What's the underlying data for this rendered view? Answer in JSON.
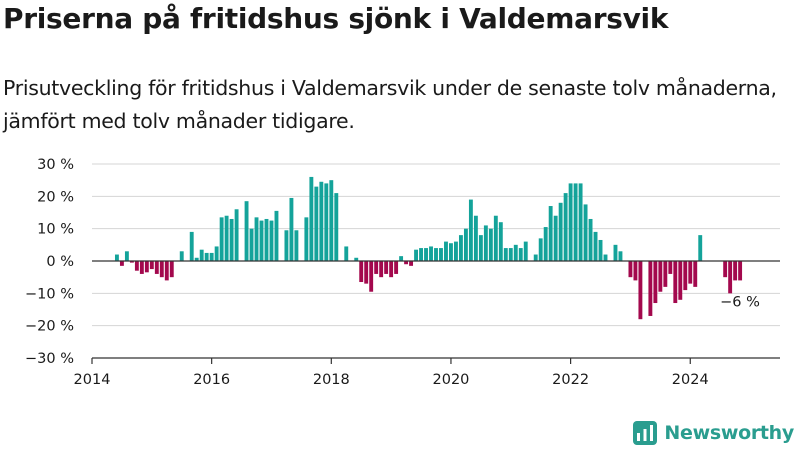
{
  "header": {
    "title": "Priserna på fritidshus sjönk i Valdemarsvik",
    "subtitle": "Prisutveckling för fritidshus i Valdemarsvik under de senaste tolv månaderna, jämfört med tolv månader tidigare."
  },
  "branding": {
    "name": "Newsworthy",
    "logo_icon": "newsworthy-chart-icon"
  },
  "colors": {
    "positive": "#14a39a",
    "negative": "#a3084d",
    "brand": "#2a9d8f"
  },
  "chart_data": {
    "type": "bar",
    "title": "Priserna på fritidshus sjönk i Valdemarsvik",
    "xlabel": "",
    "ylabel": "",
    "x_ticks": [
      "2014",
      "2016",
      "2018",
      "2020",
      "2022",
      "2024"
    ],
    "y_ticks": [
      "30 %",
      "20 %",
      "10 %",
      "0 %",
      "−10 %",
      "−20 %",
      "−30 %"
    ],
    "ylim": [
      -30,
      30
    ],
    "grid": "horizontal",
    "last_value_label": "−6 %",
    "series": [
      {
        "start": "2014-06",
        "values": [
          2,
          -1.5,
          3,
          -0.5,
          -3,
          -4,
          -3.5,
          -2.5,
          -4,
          -5,
          -6,
          -5,
          null,
          3,
          null,
          9,
          1,
          3.5,
          2.5,
          2.5,
          4.5,
          13.5,
          14,
          13,
          16,
          null,
          18.5,
          10,
          13.5,
          12.5,
          13,
          12.5,
          15.5,
          null,
          9.5,
          19.5,
          9.5,
          null,
          13.5,
          26,
          23,
          24.5,
          24,
          25,
          21,
          null,
          4.5,
          null,
          1,
          -6.5,
          -7,
          -9.5,
          -4,
          -5,
          -4,
          -5,
          -4,
          1.5,
          -1,
          -1.5,
          3.5,
          4,
          4,
          4.5,
          4,
          4,
          6,
          5.5,
          6,
          8,
          10,
          19,
          14,
          8,
          11,
          10,
          14,
          12,
          4,
          4,
          5,
          4,
          6,
          null,
          2,
          7,
          10.5,
          17,
          14,
          18,
          21,
          24,
          24,
          24,
          17.5,
          13,
          9,
          6.5,
          2,
          null,
          5,
          3,
          null,
          -5,
          -6,
          -18,
          null,
          -17,
          -13,
          -9.5,
          -8,
          -4,
          -13,
          -12,
          -9,
          -7,
          -8,
          8,
          null,
          null,
          null,
          null,
          -5,
          -10,
          -6,
          -6
        ]
      }
    ]
  }
}
